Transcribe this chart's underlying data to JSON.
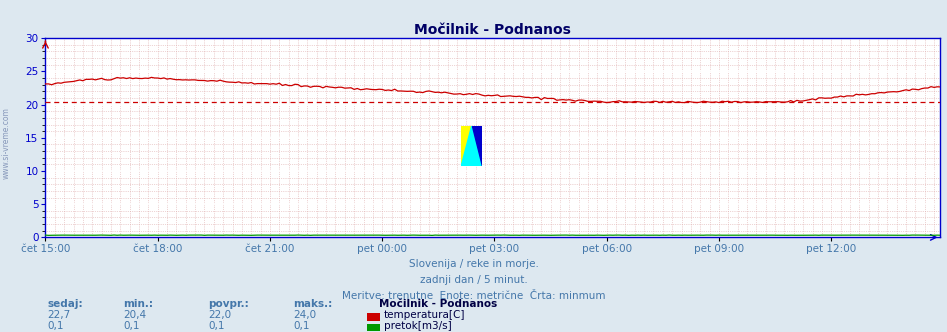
{
  "title": "Močilnik - Podnanos",
  "bg_color": "#dde8f0",
  "plot_bg_color": "#ffffff",
  "grid_color_major": "#ffffff",
  "grid_color_minor": "#ddaaaa",
  "axis_color": "#0000cc",
  "title_color": "#000066",
  "temp_color": "#cc0000",
  "flow_color": "#009900",
  "watermark_color": "#8899bb",
  "text_color": "#4477aa",
  "legend_title_color": "#000044",
  "ylim": [
    0,
    30
  ],
  "yticks": [
    0,
    5,
    10,
    15,
    20,
    25,
    30
  ],
  "x_labels": [
    "čet 15:00",
    "čet 18:00",
    "čet 21:00",
    "pet 00:00",
    "pet 03:00",
    "pet 06:00",
    "pet 09:00",
    "pet 12:00"
  ],
  "x_positions": [
    0,
    36,
    72,
    108,
    144,
    180,
    216,
    252
  ],
  "n_points": 288,
  "temp_min": 20.4,
  "temp_max": 24.0,
  "temp_avg": 22.0,
  "temp_current": 22.7,
  "subtitle1": "Slovenija / reke in morje.",
  "subtitle2": "zadnji dan / 5 minut.",
  "subtitle3": "Meritve: trenutne  Enote: metrične  Črta: minmum",
  "legend_title": "Močilnik - Podnanos",
  "legend_label1": "temperatura[C]",
  "legend_label2": "pretok[m3/s]",
  "stats_headers": [
    "sedaj:",
    "min.:",
    "povpr.:",
    "maks.:"
  ],
  "stats_temp": [
    "22,7",
    "20,4",
    "22,0",
    "24,0"
  ],
  "stats_flow": [
    "0,1",
    "0,1",
    "0,1",
    "0,1"
  ],
  "logo_yellow": "#ffff00",
  "logo_cyan": "#00ffff",
  "logo_blue": "#0000cc"
}
